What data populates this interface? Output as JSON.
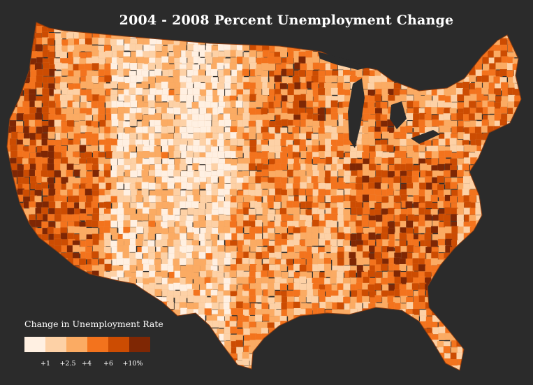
{
  "title": "2004 - 2008 Percent Unemployment Change",
  "legend": {
    "title": "Change in Unemployment Rate",
    "colors": [
      "#fff0e2",
      "#fdd1a6",
      "#fbab63",
      "#f3731d",
      "#cc4c02",
      "#7f2704"
    ],
    "tick_labels": [
      "+1",
      "+2.5",
      "+4",
      "+6",
      "+10%"
    ]
  },
  "map": {
    "background": "#2b2b2b",
    "border_color": "#8a3a0e"
  }
}
